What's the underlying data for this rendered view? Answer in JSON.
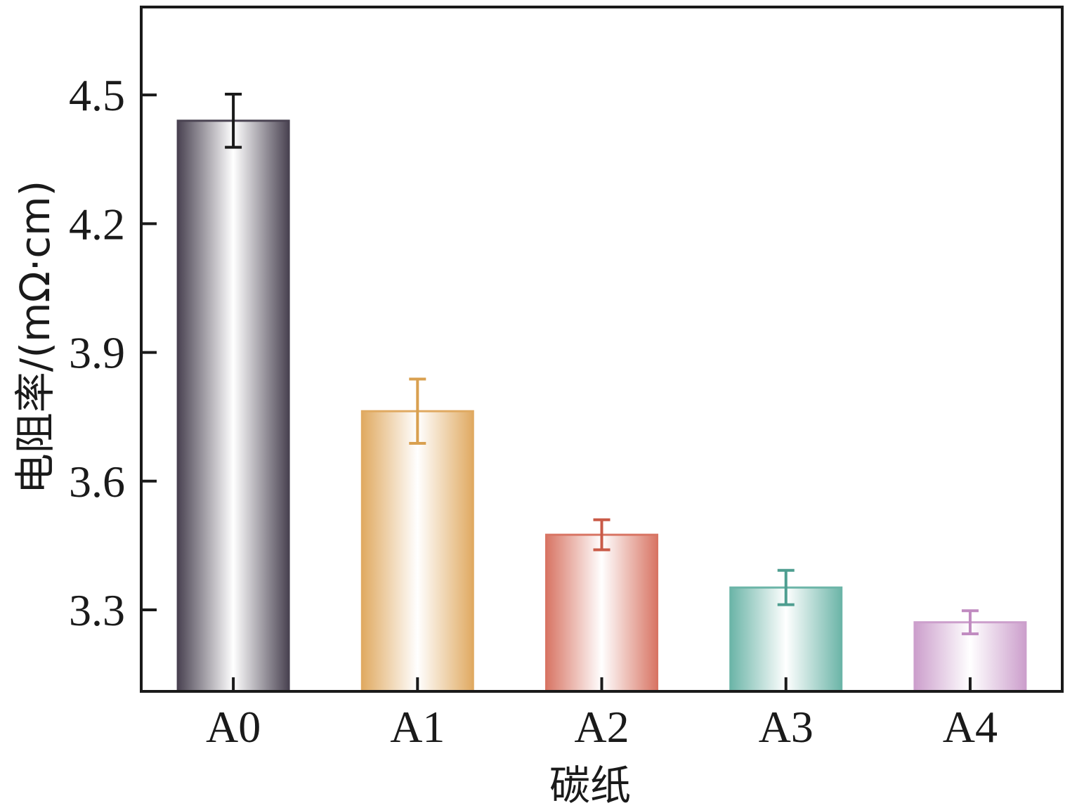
{
  "chart_data": {
    "type": "bar",
    "title": "",
    "xlabel": "碳纸",
    "ylabel": "电阻率/(mΩ·cm)",
    "categories": [
      "A0",
      "A1",
      "A2",
      "A3",
      "A4"
    ],
    "values": [
      4.44,
      3.763,
      3.475,
      3.352,
      3.271
    ],
    "errors": [
      0.062,
      0.075,
      0.035,
      0.04,
      0.027
    ],
    "colors": [
      "#4a4352",
      "#e0aa62",
      "#d87564",
      "#6cb5a8",
      "#cc9fcc"
    ],
    "error_colors": [
      "#1a1a1a",
      "#d9a050",
      "#c95a47",
      "#4e9e90",
      "#c08ac0"
    ],
    "ylim": [
      3.11,
      4.705
    ],
    "yticks": [
      3.3,
      3.6,
      3.9,
      4.2,
      4.5
    ],
    "ytick_labels": [
      "3.3",
      "3.6",
      "3.9",
      "4.2",
      "4.5"
    ],
    "grid": false,
    "legend": "none"
  }
}
